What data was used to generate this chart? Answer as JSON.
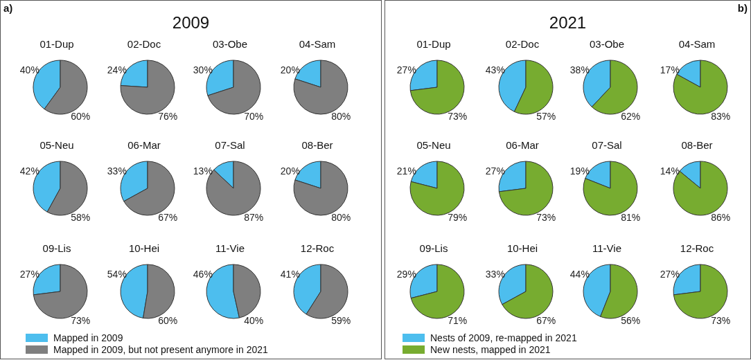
{
  "chart_data": [
    {
      "type": "other",
      "title": "2009",
      "annotations": [
        "a)"
      ]
    },
    {
      "type": "pie",
      "title": "01-Dup",
      "values": [
        40,
        60
      ],
      "colors": [
        "#4dbeee",
        "#7f7f7f"
      ],
      "value_labels": [
        "40%",
        "60%"
      ]
    },
    {
      "type": "pie",
      "title": "02-Doc",
      "values": [
        24,
        76
      ],
      "colors": [
        "#4dbeee",
        "#7f7f7f"
      ],
      "value_labels": [
        "24%",
        "76%"
      ]
    },
    {
      "type": "pie",
      "title": "03-Obe",
      "values": [
        30,
        70
      ],
      "colors": [
        "#4dbeee",
        "#7f7f7f"
      ],
      "value_labels": [
        "30%",
        "70%"
      ]
    },
    {
      "type": "pie",
      "title": "04-Sam",
      "values": [
        20,
        80
      ],
      "colors": [
        "#4dbeee",
        "#7f7f7f"
      ],
      "value_labels": [
        "20%",
        "80%"
      ]
    },
    {
      "type": "pie",
      "title": "05-Neu",
      "values": [
        42,
        58
      ],
      "colors": [
        "#4dbeee",
        "#7f7f7f"
      ],
      "value_labels": [
        "42%",
        "58%"
      ]
    },
    {
      "type": "pie",
      "title": "06-Mar",
      "values": [
        33,
        67
      ],
      "colors": [
        "#4dbeee",
        "#7f7f7f"
      ],
      "value_labels": [
        "33%",
        "67%"
      ]
    },
    {
      "type": "pie",
      "title": "07-Sal",
      "values": [
        13,
        87
      ],
      "colors": [
        "#4dbeee",
        "#7f7f7f"
      ],
      "value_labels": [
        "13%",
        "87%"
      ]
    },
    {
      "type": "pie",
      "title": "08-Ber",
      "values": [
        20,
        80
      ],
      "colors": [
        "#4dbeee",
        "#7f7f7f"
      ],
      "value_labels": [
        "20%",
        "80%"
      ]
    },
    {
      "type": "pie",
      "title": "09-Lis",
      "categories": [
        "Mapped in 2009",
        "Mapped in 2009, but not present anymore in 2021"
      ],
      "values": [
        27,
        73
      ],
      "colors": [
        "#4dbeee",
        "#7f7f7f"
      ],
      "value_labels": [
        "27%",
        "73%"
      ],
      "legend": "bottom"
    },
    {
      "type": "pie",
      "title": "10-Hei",
      "values": [
        54,
        60
      ],
      "colors": [
        "#4dbeee",
        "#7f7f7f"
      ],
      "value_labels": [
        "54%",
        "60%"
      ]
    },
    {
      "type": "pie",
      "title": "11-Vie",
      "values": [
        46,
        40
      ],
      "colors": [
        "#4dbeee",
        "#7f7f7f"
      ],
      "value_labels": [
        "46%",
        "40%"
      ]
    },
    {
      "type": "pie",
      "title": "12-Roc",
      "values": [
        41,
        59
      ],
      "colors": [
        "#4dbeee",
        "#7f7f7f"
      ],
      "value_labels": [
        "41%",
        "59%"
      ]
    },
    {
      "type": "other",
      "title": "2021",
      "annotations": [
        "b)"
      ]
    },
    {
      "type": "pie",
      "title": "01-Dup",
      "values": [
        27,
        73
      ],
      "colors": [
        "#4dbeee",
        "#77ac30"
      ],
      "value_labels": [
        "27%",
        "73%"
      ]
    },
    {
      "type": "pie",
      "title": "02-Doc",
      "values": [
        43,
        57
      ],
      "colors": [
        "#4dbeee",
        "#77ac30"
      ],
      "value_labels": [
        "43%",
        "57%"
      ]
    },
    {
      "type": "pie",
      "title": "03-Obe",
      "values": [
        38,
        62
      ],
      "colors": [
        "#4dbeee",
        "#77ac30"
      ],
      "value_labels": [
        "38%",
        "62%"
      ]
    },
    {
      "type": "pie",
      "title": "04-Sam",
      "values": [
        17,
        83
      ],
      "colors": [
        "#4dbeee",
        "#77ac30"
      ],
      "value_labels": [
        "17%",
        "83%"
      ]
    },
    {
      "type": "pie",
      "title": "05-Neu",
      "values": [
        21,
        79
      ],
      "colors": [
        "#4dbeee",
        "#77ac30"
      ],
      "value_labels": [
        "21%",
        "79%"
      ]
    },
    {
      "type": "pie",
      "title": "06-Mar",
      "values": [
        27,
        73
      ],
      "colors": [
        "#4dbeee",
        "#77ac30"
      ],
      "value_labels": [
        "27%",
        "73%"
      ]
    },
    {
      "type": "pie",
      "title": "07-Sal",
      "values": [
        19,
        81
      ],
      "colors": [
        "#4dbeee",
        "#77ac30"
      ],
      "value_labels": [
        "19%",
        "81%"
      ]
    },
    {
      "type": "pie",
      "title": "08-Ber",
      "values": [
        14,
        86
      ],
      "colors": [
        "#4dbeee",
        "#77ac30"
      ],
      "value_labels": [
        "14%",
        "86%"
      ]
    },
    {
      "type": "pie",
      "title": "09-Lis",
      "categories": [
        "Nests of 2009, re-mapped in 2021",
        "New nests, mapped in 2021"
      ],
      "values": [
        29,
        71
      ],
      "colors": [
        "#4dbeee",
        "#77ac30"
      ],
      "value_labels": [
        "29%",
        "71%"
      ],
      "legend": "bottom"
    },
    {
      "type": "pie",
      "title": "10-Hei",
      "values": [
        33,
        67
      ],
      "colors": [
        "#4dbeee",
        "#77ac30"
      ],
      "value_labels": [
        "33%",
        "67%"
      ]
    },
    {
      "type": "pie",
      "title": "11-Vie",
      "values": [
        44,
        56
      ],
      "colors": [
        "#4dbeee",
        "#77ac30"
      ],
      "value_labels": [
        "44%",
        "56%"
      ]
    },
    {
      "type": "pie",
      "title": "12-Roc",
      "values": [
        27,
        73
      ],
      "colors": [
        "#4dbeee",
        "#77ac30"
      ],
      "value_labels": [
        "27%",
        "73%"
      ]
    }
  ]
}
